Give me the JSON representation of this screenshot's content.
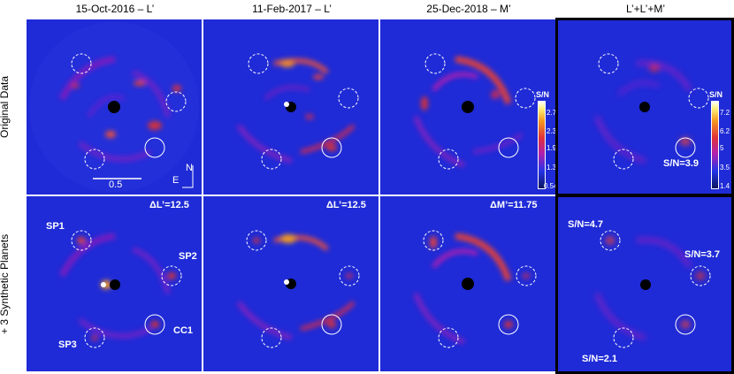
{
  "columns": [
    "15-Oct-2016 – L’",
    "11-Feb-2017 – L’",
    "25-Dec-2018 – M’",
    "L’+L’+M’"
  ],
  "rows": [
    "Original Data",
    "+ 3 Synthetic Planets"
  ],
  "panel1_scale": "0.5",
  "compass": {
    "north": "N",
    "east": "E"
  },
  "top_row": {
    "snr_combined": "S/N=3.9"
  },
  "colorbars": [
    {
      "title": "S/N",
      "ticks": [
        "2.7",
        "2.3",
        "1.9",
        "1.3",
        "0.54"
      ]
    },
    {
      "title": "S/N",
      "ticks": [
        "7.2",
        "6.2",
        "5",
        "3.5",
        "1.4"
      ]
    }
  ],
  "bottom_row": {
    "contrast": [
      "ΔL’=12.5",
      "ΔL’=12.5",
      "ΔM’=11.75"
    ],
    "planet_labels": {
      "sp1": "SP1",
      "sp2": "SP2",
      "sp3": "SP3",
      "cc1": "CC1"
    },
    "snr": {
      "sp1": "S/N=4.7",
      "sp2": "S/N=3.7",
      "sp3": "S/N=2.1"
    }
  }
}
